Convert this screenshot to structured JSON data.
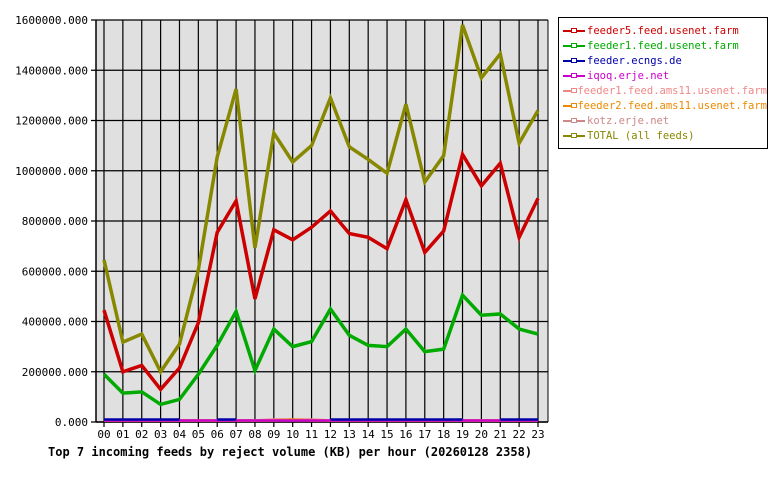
{
  "chart_data": {
    "type": "line",
    "title": "Top 7 incoming feeds by reject volume (KB) per hour (20260128 2358)",
    "xlabel": "",
    "ylabel": "",
    "ylim": [
      0,
      1600000
    ],
    "yticks": [
      "0.000",
      "200000.000",
      "400000.000",
      "600000.000",
      "800000.000",
      "1000000.000",
      "1200000.000",
      "1400000.000",
      "1600000.000"
    ],
    "grid": true,
    "legend_position": "right",
    "categories": [
      "00",
      "01",
      "02",
      "03",
      "04",
      "05",
      "06",
      "07",
      "08",
      "09",
      "10",
      "11",
      "12",
      "13",
      "14",
      "15",
      "16",
      "17",
      "18",
      "19",
      "20",
      "21",
      "22",
      "23"
    ],
    "series": [
      {
        "name": "feeder5.feed.usenet.farm",
        "color": "#cc0000",
        "values": [
          445000,
          200000,
          225000,
          130000,
          215000,
          395000,
          755000,
          880000,
          490000,
          765000,
          725000,
          775000,
          840000,
          750000,
          735000,
          690000,
          885000,
          675000,
          760000,
          1065000,
          940000,
          1030000,
          735000,
          890000
        ]
      },
      {
        "name": "feeder1.feed.usenet.farm",
        "color": "#00aa00",
        "values": [
          190000,
          115000,
          120000,
          70000,
          90000,
          190000,
          305000,
          440000,
          205000,
          370000,
          300000,
          320000,
          450000,
          345000,
          305000,
          300000,
          370000,
          280000,
          290000,
          505000,
          425000,
          430000,
          370000,
          350000
        ]
      },
      {
        "name": "feeder.ecngs.de",
        "color": "#0000aa",
        "values": [
          10000,
          10000,
          10000,
          10000,
          10000,
          null,
          10000,
          null,
          null,
          null,
          null,
          null,
          10000,
          10000,
          10000,
          10000,
          10000,
          10000,
          10000,
          10000,
          null,
          10000,
          10000,
          10000
        ]
      },
      {
        "name": "iqoq.erje.net",
        "color": "#cc00cc",
        "values": [
          0,
          0,
          0,
          0,
          0,
          0,
          0,
          0,
          0,
          0,
          0,
          0,
          0,
          0,
          0,
          0,
          0,
          0,
          0,
          0,
          0,
          0,
          0,
          0
        ]
      },
      {
        "name": "feeder1.feed.ams11.usenet.farm",
        "color": "#ee8888",
        "values": [
          0,
          0,
          0,
          0,
          0,
          0,
          0,
          0,
          0,
          10000,
          10000,
          10000,
          0,
          0,
          0,
          0,
          0,
          0,
          0,
          0,
          0,
          0,
          0,
          0
        ]
      },
      {
        "name": "feeder2.feed.ams11.usenet.farm",
        "color": "#ee8800",
        "values": [
          0,
          0,
          0,
          0,
          0,
          0,
          0,
          0,
          0,
          0,
          10000,
          0,
          0,
          0,
          0,
          0,
          0,
          0,
          0,
          0,
          0,
          0,
          0,
          0
        ]
      },
      {
        "name": "kotz.erje.net",
        "color": "#cc8888",
        "values": [
          3000,
          3000,
          3000,
          3000,
          3000,
          3000,
          3000,
          3000,
          3000,
          3000,
          3000,
          3000,
          3000,
          3000,
          3000,
          3000,
          3000,
          3000,
          3000,
          3000,
          3000,
          3000,
          3000,
          3000
        ]
      },
      {
        "name": "TOTAL (all feeds)",
        "color": "#888800",
        "values": [
          645000,
          318000,
          350000,
          200000,
          310000,
          605000,
          1055000,
          1325000,
          693000,
          1150000,
          1035000,
          1100000,
          1290000,
          1095000,
          1045000,
          990000,
          1265000,
          955000,
          1060000,
          1580000,
          1370000,
          1465000,
          1110000,
          1240000
        ]
      }
    ]
  },
  "legend": {
    "items": [
      {
        "label": "feeder5.feed.usenet.farm",
        "color": "#cc0000"
      },
      {
        "label": "feeder1.feed.usenet.farm",
        "color": "#00aa00"
      },
      {
        "label": "feeder.ecngs.de",
        "color": "#0000aa"
      },
      {
        "label": "iqoq.erje.net",
        "color": "#cc00cc"
      },
      {
        "label": "feeder1.feed.ams11.usenet.farm",
        "color": "#ee8888"
      },
      {
        "label": "feeder2.feed.ams11.usenet.farm",
        "color": "#ee8800"
      },
      {
        "label": "kotz.erje.net",
        "color": "#cc8888"
      },
      {
        "label": "TOTAL (all feeds)",
        "color": "#888800"
      }
    ]
  },
  "colors": {
    "plot_background": "#e0e0e0",
    "grid": "#000000"
  }
}
